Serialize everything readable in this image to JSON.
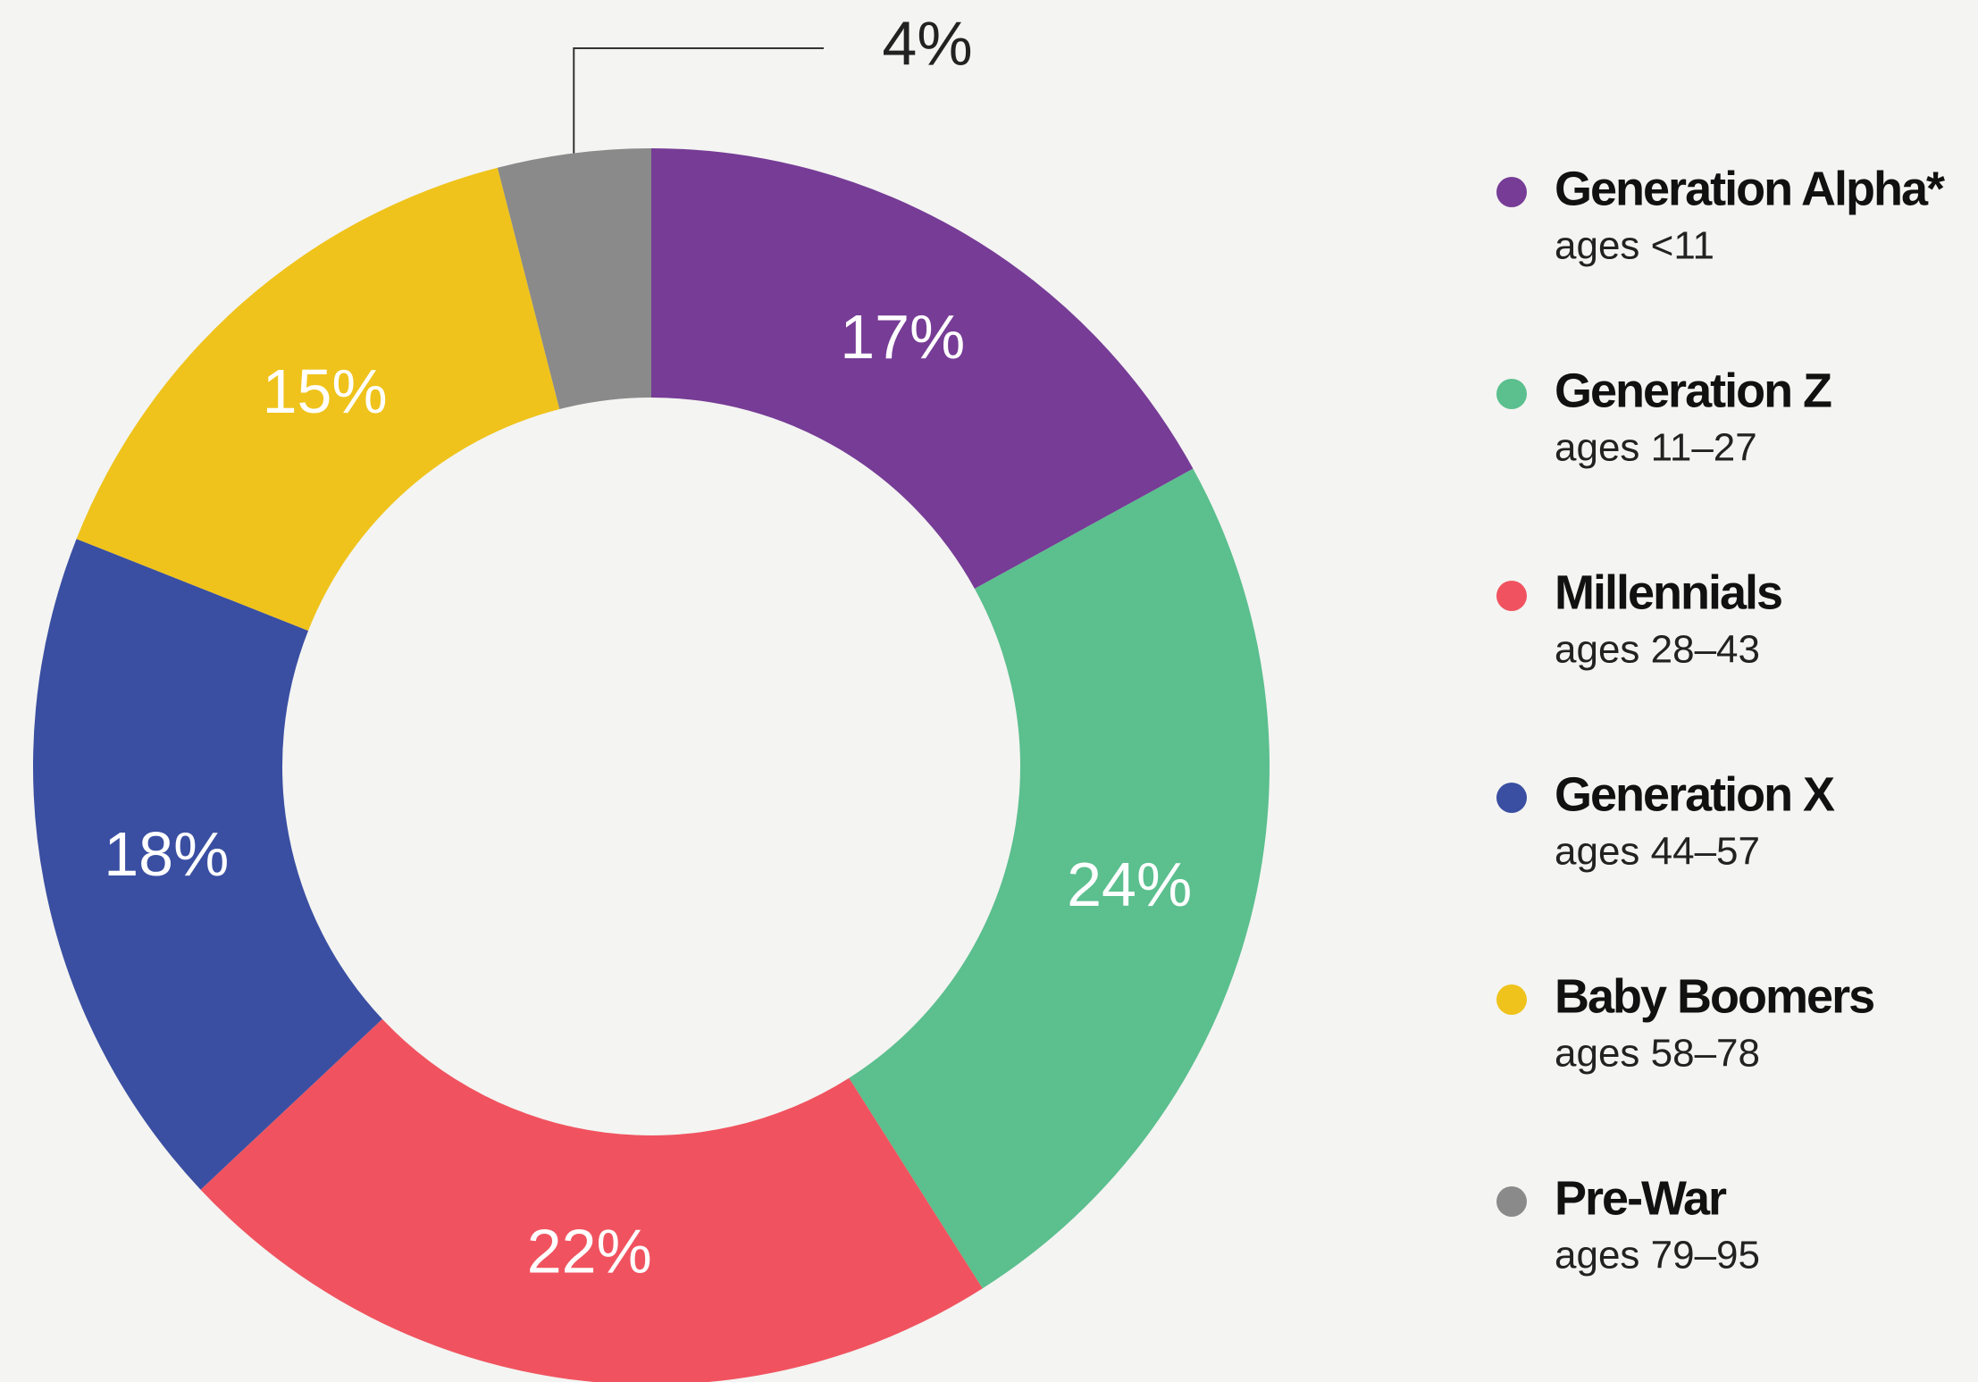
{
  "chart_data": {
    "type": "donut",
    "categories": [
      "Generation Alpha*",
      "Generation Z",
      "Millennials",
      "Generation X",
      "Baby Boomers",
      "Pre-War"
    ],
    "notes": [
      "ages <11",
      "ages 11–27",
      "ages 28–43",
      "ages 44–57",
      "ages 58–78",
      "ages 79–95"
    ],
    "values": [
      17,
      24,
      22,
      18,
      15,
      4
    ],
    "value_labels": [
      "17%",
      "24%",
      "22%",
      "18%",
      "15%",
      "4%"
    ],
    "colors": [
      "#763c96",
      "#5bbf8e",
      "#f0535f",
      "#3a4fa2",
      "#efc31b",
      "#8a8a8a"
    ],
    "legend": "right"
  }
}
